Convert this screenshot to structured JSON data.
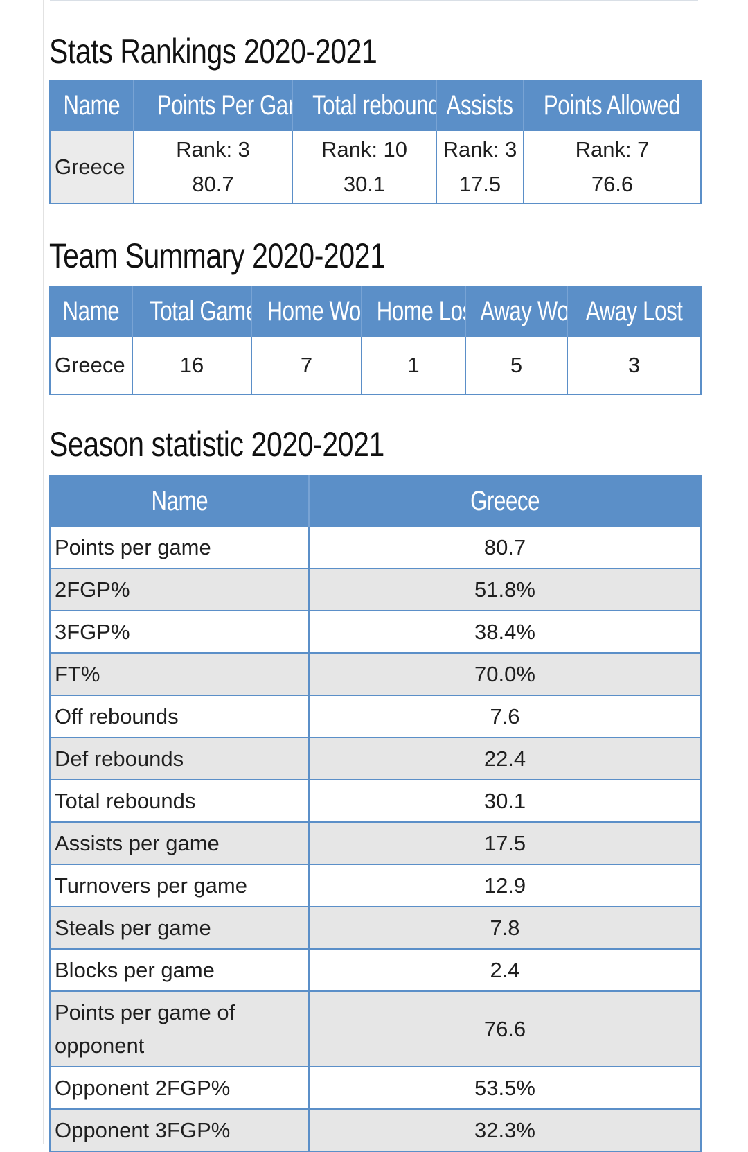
{
  "rankings": {
    "title": "Stats Rankings 2020-2021",
    "headers": [
      "Name",
      "Points Per Game",
      "Total rebounds",
      "Assists",
      "Points Allowed"
    ],
    "team": "Greece",
    "cells": [
      {
        "rank": "Rank: 3",
        "value": "80.7"
      },
      {
        "rank": "Rank: 10",
        "value": "30.1"
      },
      {
        "rank": "Rank: 3",
        "value": "17.5"
      },
      {
        "rank": "Rank: 7",
        "value": "76.6"
      }
    ]
  },
  "summary": {
    "title": "Team Summary 2020-2021",
    "headers": [
      "Name",
      "Total Games",
      "Home Won",
      "Home Lost",
      "Away Won",
      "Away Lost"
    ],
    "team": "Greece",
    "values": [
      "16",
      "7",
      "1",
      "5",
      "3"
    ]
  },
  "season": {
    "title": "Season statistic 2020-2021",
    "headers": [
      "Name",
      "Greece"
    ],
    "rows": [
      {
        "label": "Points per game",
        "value": "80.7"
      },
      {
        "label": "2FGP%",
        "value": "51.8%"
      },
      {
        "label": "3FGP%",
        "value": "38.4%"
      },
      {
        "label": "FT%",
        "value": "70.0%"
      },
      {
        "label": "Off rebounds",
        "value": "7.6"
      },
      {
        "label": "Def rebounds",
        "value": "22.4"
      },
      {
        "label": "Total rebounds",
        "value": "30.1"
      },
      {
        "label": "Assists per game",
        "value": "17.5"
      },
      {
        "label": "Turnovers per game",
        "value": "12.9"
      },
      {
        "label": "Steals per game",
        "value": "7.8"
      },
      {
        "label": "Blocks per game",
        "value": "2.4"
      },
      {
        "label": "Points per game of opponent",
        "value": "76.6"
      },
      {
        "label": "Opponent 2FGP%",
        "value": "53.5%"
      },
      {
        "label": "Opponent 3FGP%",
        "value": "32.3%"
      }
    ]
  },
  "colors": {
    "header_bg": "#5b8fc8",
    "header_text": "#ffffff",
    "row_shade": "#e6e6e6"
  }
}
